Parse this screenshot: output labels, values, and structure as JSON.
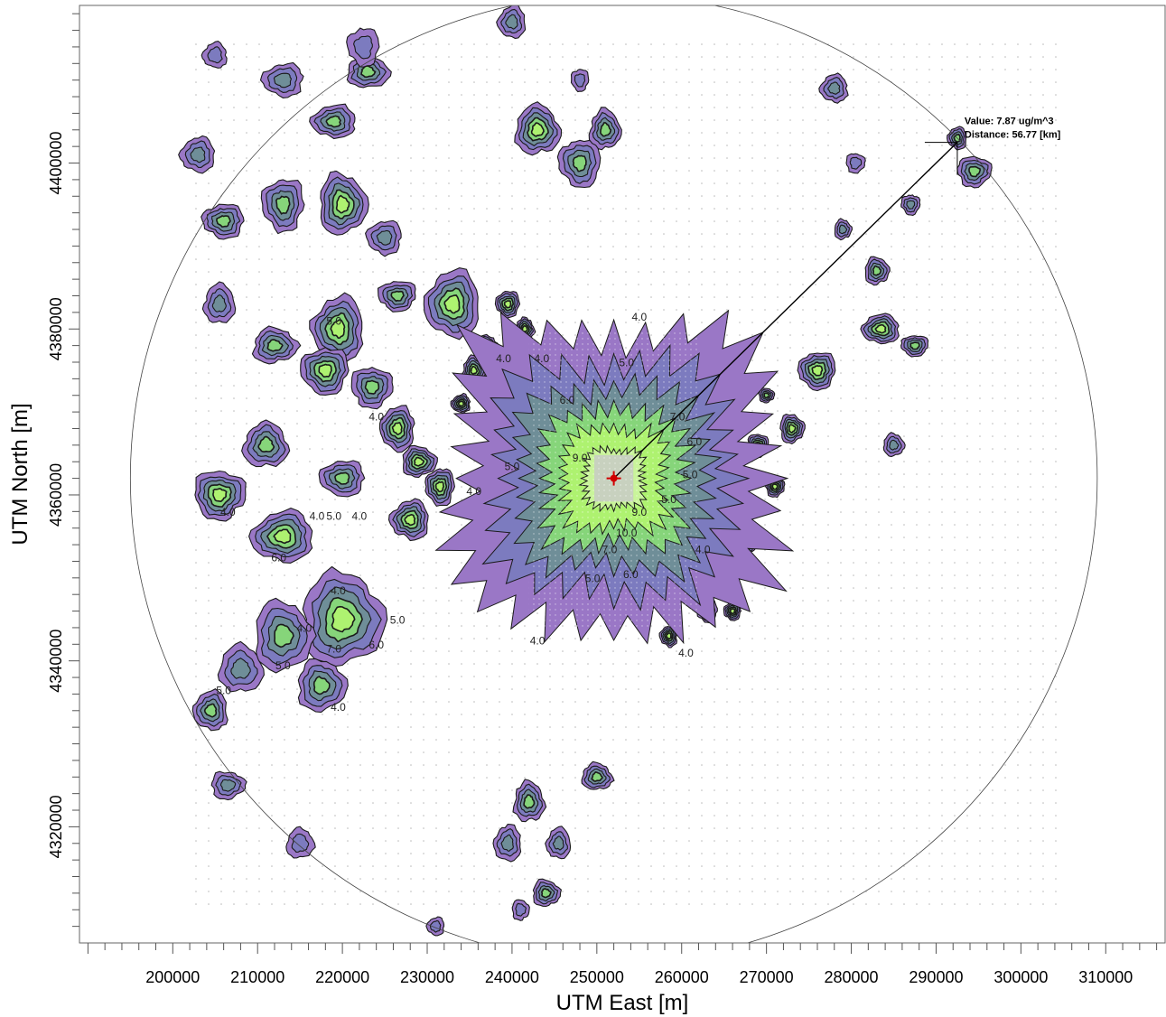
{
  "chart_data": {
    "type": "contour",
    "title": "",
    "xlabel": "UTM East [m]",
    "ylabel": "UTM North [m]",
    "xlim": [
      189000,
      317000
    ],
    "ylim": [
      4306000,
      4419000
    ],
    "x_ticks": [
      200000,
      210000,
      220000,
      230000,
      240000,
      250000,
      260000,
      270000,
      280000,
      290000,
      300000,
      310000
    ],
    "y_ticks": [
      4320000,
      4340000,
      4360000,
      4380000,
      4400000
    ],
    "x_tick_labels": [
      "200000",
      "210000",
      "220000",
      "230000",
      "240000",
      "250000",
      "260000",
      "270000",
      "280000",
      "290000",
      "300000",
      "310000"
    ],
    "y_tick_labels": [
      "4320000",
      "4340000",
      "4360000",
      "4380000",
      "4400000"
    ],
    "source": {
      "x": 252000,
      "y": 4362000
    },
    "ring_radius_m": 57000,
    "contour_levels": [
      4.0,
      5.0,
      6.0,
      7.0,
      9.0,
      10.0
    ],
    "level_labels": [
      "4.0",
      "5.0",
      "6.0",
      "7.0",
      "9.0",
      "10.0"
    ],
    "level_colors": [
      "#9a77c6",
      "#7c7bbf",
      "#6f8e98",
      "#86d57a",
      "#aef270",
      "#c9f49a"
    ],
    "central_plume": [
      {
        "level": 4.0,
        "halfwidth_m": 16500
      },
      {
        "level": 5.0,
        "halfwidth_m": 12500
      },
      {
        "level": 6.0,
        "halfwidth_m": 10000
      },
      {
        "level": 7.0,
        "halfwidth_m": 7600
      },
      {
        "level": 9.0,
        "halfwidth_m": 5500
      },
      {
        "level": 10.0,
        "halfwidth_m": 3200
      }
    ],
    "hotspots": [
      {
        "x": 205500,
        "y": 4383000,
        "r": 1800,
        "peak": 6.0
      },
      {
        "x": 212000,
        "y": 4378000,
        "r": 2600,
        "peak": 7.0
      },
      {
        "x": 219500,
        "y": 4380000,
        "r": 3000,
        "peak": 9.0
      },
      {
        "x": 226500,
        "y": 4384000,
        "r": 2200,
        "peak": 7.0
      },
      {
        "x": 233000,
        "y": 4383000,
        "r": 3200,
        "peak": 9.0
      },
      {
        "x": 218000,
        "y": 4375000,
        "r": 2800,
        "peak": 9.0
      },
      {
        "x": 223500,
        "y": 4373000,
        "r": 2400,
        "peak": 7.0
      },
      {
        "x": 211000,
        "y": 4366000,
        "r": 2600,
        "peak": 7.0
      },
      {
        "x": 205500,
        "y": 4360000,
        "r": 3000,
        "peak": 9.0
      },
      {
        "x": 213000,
        "y": 4355000,
        "r": 3600,
        "peak": 9.0
      },
      {
        "x": 220000,
        "y": 4362000,
        "r": 2600,
        "peak": 7.0
      },
      {
        "x": 226500,
        "y": 4368000,
        "r": 2000,
        "peak": 9.0
      },
      {
        "x": 229000,
        "y": 4364000,
        "r": 2000,
        "peak": 9.0
      },
      {
        "x": 228000,
        "y": 4357000,
        "r": 2200,
        "peak": 9.0
      },
      {
        "x": 231500,
        "y": 4361000,
        "r": 1700,
        "peak": 9.0
      },
      {
        "x": 220000,
        "y": 4345000,
        "r": 4800,
        "peak": 9.0
      },
      {
        "x": 213000,
        "y": 4343000,
        "r": 3400,
        "peak": 7.0
      },
      {
        "x": 208000,
        "y": 4339000,
        "r": 2600,
        "peak": 6.0
      },
      {
        "x": 217500,
        "y": 4337000,
        "r": 2800,
        "peak": 7.0
      },
      {
        "x": 204500,
        "y": 4334000,
        "r": 2000,
        "peak": 7.0
      },
      {
        "x": 206500,
        "y": 4325000,
        "r": 2000,
        "peak": 6.0
      },
      {
        "x": 206000,
        "y": 4393000,
        "r": 2400,
        "peak": 7.0
      },
      {
        "x": 213000,
        "y": 4395000,
        "r": 2400,
        "peak": 7.0
      },
      {
        "x": 220000,
        "y": 4395000,
        "r": 2800,
        "peak": 9.0
      },
      {
        "x": 225000,
        "y": 4391000,
        "r": 2000,
        "peak": 6.0
      },
      {
        "x": 213000,
        "y": 4410000,
        "r": 2400,
        "peak": 6.0
      },
      {
        "x": 219000,
        "y": 4405000,
        "r": 2600,
        "peak": 7.0
      },
      {
        "x": 223000,
        "y": 4411000,
        "r": 2400,
        "peak": 7.0
      },
      {
        "x": 203000,
        "y": 4401000,
        "r": 2000,
        "peak": 6.0
      },
      {
        "x": 222500,
        "y": 4414000,
        "r": 1800,
        "peak": 5.0
      },
      {
        "x": 205000,
        "y": 4413000,
        "r": 1400,
        "peak": 5.0
      },
      {
        "x": 235500,
        "y": 4375000,
        "r": 1300,
        "peak": 9.0
      },
      {
        "x": 237000,
        "y": 4378000,
        "r": 1300,
        "peak": 9.0
      },
      {
        "x": 239500,
        "y": 4383000,
        "r": 1400,
        "peak": 9.0
      },
      {
        "x": 241500,
        "y": 4380000,
        "r": 1100,
        "peak": 9.0
      },
      {
        "x": 234000,
        "y": 4371000,
        "r": 1100,
        "peak": 9.0
      },
      {
        "x": 243000,
        "y": 4404000,
        "r": 2600,
        "peak": 9.0
      },
      {
        "x": 248000,
        "y": 4400000,
        "r": 2400,
        "peak": 7.0
      },
      {
        "x": 251000,
        "y": 4404000,
        "r": 1800,
        "peak": 7.0
      },
      {
        "x": 240000,
        "y": 4417000,
        "r": 1600,
        "peak": 6.0
      },
      {
        "x": 248000,
        "y": 4410000,
        "r": 1000,
        "peak": 5.0
      },
      {
        "x": 269000,
        "y": 4366000,
        "r": 1200,
        "peak": 9.0
      },
      {
        "x": 273000,
        "y": 4368000,
        "r": 1400,
        "peak": 9.0
      },
      {
        "x": 271000,
        "y": 4361000,
        "r": 1100,
        "peak": 9.0
      },
      {
        "x": 267500,
        "y": 4354000,
        "r": 1200,
        "peak": 9.0
      },
      {
        "x": 264000,
        "y": 4351000,
        "r": 1100,
        "peak": 9.0
      },
      {
        "x": 263000,
        "y": 4346000,
        "r": 1200,
        "peak": 9.0
      },
      {
        "x": 266000,
        "y": 4346000,
        "r": 1000,
        "peak": 9.0
      },
      {
        "x": 258500,
        "y": 4343000,
        "r": 1000,
        "peak": 9.0
      },
      {
        "x": 270000,
        "y": 4372000,
        "r": 900,
        "peak": 7.0
      },
      {
        "x": 276000,
        "y": 4375000,
        "r": 2200,
        "peak": 9.0
      },
      {
        "x": 283500,
        "y": 4380000,
        "r": 2200,
        "peak": 9.0
      },
      {
        "x": 287500,
        "y": 4378000,
        "r": 1600,
        "peak": 7.0
      },
      {
        "x": 285000,
        "y": 4366000,
        "r": 1200,
        "peak": 6.0
      },
      {
        "x": 283000,
        "y": 4387000,
        "r": 1400,
        "peak": 7.0
      },
      {
        "x": 287000,
        "y": 4395000,
        "r": 1100,
        "peak": 6.0
      },
      {
        "x": 279000,
        "y": 4392000,
        "r": 1000,
        "peak": 6.0
      },
      {
        "x": 294500,
        "y": 4399000,
        "r": 2000,
        "peak": 7.0
      },
      {
        "x": 292500,
        "y": 4403000,
        "r": 1100,
        "peak": 7.0
      },
      {
        "x": 278000,
        "y": 4409000,
        "r": 1600,
        "peak": 6.0
      },
      {
        "x": 280500,
        "y": 4400000,
        "r": 1100,
        "peak": 5.0
      },
      {
        "x": 242000,
        "y": 4323000,
        "r": 1800,
        "peak": 7.0
      },
      {
        "x": 250000,
        "y": 4326000,
        "r": 1800,
        "peak": 7.0
      },
      {
        "x": 239500,
        "y": 4318000,
        "r": 1600,
        "peak": 6.0
      },
      {
        "x": 245500,
        "y": 4318000,
        "r": 1400,
        "peak": 6.0
      },
      {
        "x": 244000,
        "y": 4312000,
        "r": 1600,
        "peak": 7.0
      },
      {
        "x": 241000,
        "y": 4310000,
        "r": 1000,
        "peak": 5.0
      },
      {
        "x": 215000,
        "y": 4318000,
        "r": 1600,
        "peak": 5.0
      },
      {
        "x": 231000,
        "y": 4308000,
        "r": 1000,
        "peak": 5.0
      }
    ],
    "label_positions": [
      {
        "text": "4.0",
        "x": 255000,
        "y": 4381000
      },
      {
        "text": "5.0",
        "x": 253500,
        "y": 4375500
      },
      {
        "text": "6.0",
        "x": 246500,
        "y": 4371000
      },
      {
        "text": "4.0",
        "x": 243500,
        "y": 4376000
      },
      {
        "text": "7.0",
        "x": 259500,
        "y": 4369000
      },
      {
        "text": "6.0",
        "x": 261500,
        "y": 4366000
      },
      {
        "text": "5.0",
        "x": 261000,
        "y": 4362000
      },
      {
        "text": "9.0",
        "x": 248000,
        "y": 4364000
      },
      {
        "text": "5.0",
        "x": 240000,
        "y": 4363000
      },
      {
        "text": "4.0",
        "x": 235500,
        "y": 4360000
      },
      {
        "text": "9.0",
        "x": 255000,
        "y": 4357500
      },
      {
        "text": "10.0",
        "x": 253500,
        "y": 4355000
      },
      {
        "text": "7.0",
        "x": 251500,
        "y": 4353000
      },
      {
        "text": "6.0",
        "x": 254000,
        "y": 4350000
      },
      {
        "text": "5.0",
        "x": 249500,
        "y": 4349500
      },
      {
        "text": "4.0",
        "x": 243000,
        "y": 4342000
      },
      {
        "text": "4.0",
        "x": 224000,
        "y": 4369000
      },
      {
        "text": "5.0",
        "x": 219000,
        "y": 4380500
      },
      {
        "text": "4.0",
        "x": 217000,
        "y": 4357000
      },
      {
        "text": "5.0",
        "x": 219000,
        "y": 4357000
      },
      {
        "text": "4.0",
        "x": 222000,
        "y": 4357000
      },
      {
        "text": "6.0",
        "x": 212500,
        "y": 4352000
      },
      {
        "text": "4.0",
        "x": 219500,
        "y": 4348000
      },
      {
        "text": "4.0",
        "x": 215500,
        "y": 4343500
      },
      {
        "text": "5.0",
        "x": 226500,
        "y": 4344500
      },
      {
        "text": "6.0",
        "x": 224000,
        "y": 4341500
      },
      {
        "text": "7.0",
        "x": 219000,
        "y": 4341000
      },
      {
        "text": "5.0",
        "x": 213000,
        "y": 4339000
      },
      {
        "text": "5.0",
        "x": 206000,
        "y": 4336000
      },
      {
        "text": "4.0",
        "x": 219500,
        "y": 4334000
      },
      {
        "text": "4.0",
        "x": 206500,
        "y": 4357500
      },
      {
        "text": "4.0",
        "x": 262500,
        "y": 4353000
      },
      {
        "text": "4.0",
        "x": 260500,
        "y": 4340500
      },
      {
        "text": "5.0",
        "x": 258500,
        "y": 4359000
      },
      {
        "text": "4.0",
        "x": 239000,
        "y": 4376000
      }
    ],
    "annotation": {
      "point": {
        "x": 292500,
        "y": 4402500
      },
      "value_text": "Value: 7.87 ug/m^3",
      "distance_text": "Distance: 56.77 [km]"
    }
  }
}
